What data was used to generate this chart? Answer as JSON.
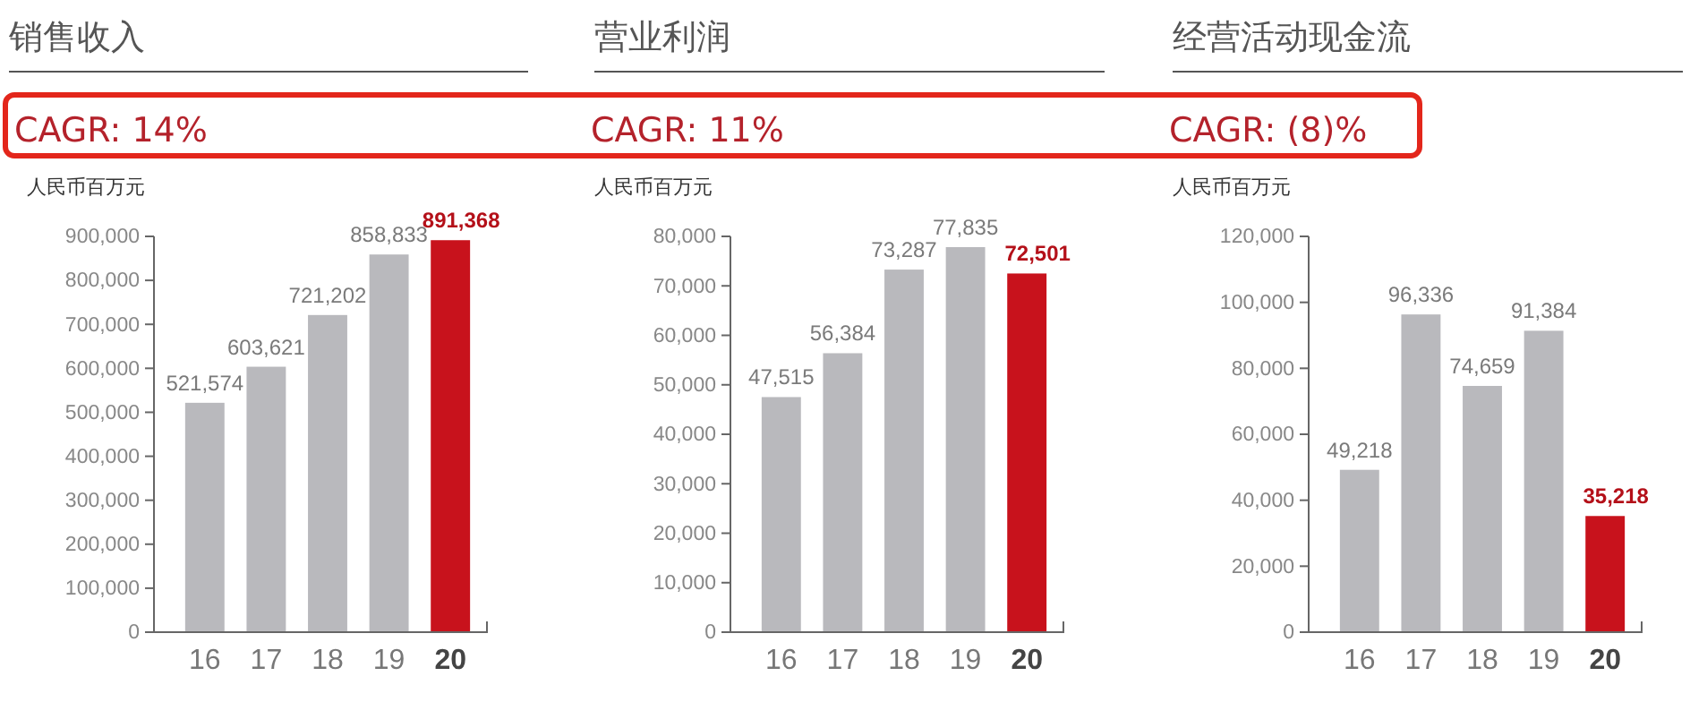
{
  "chart_data": [
    {
      "type": "bar",
      "title": "销售收入",
      "ylabel": "人民币百万元",
      "annotations": [
        "CAGR: 14%"
      ],
      "categories": [
        "16",
        "17",
        "18",
        "19",
        "20"
      ],
      "values": [
        521574,
        603621,
        721202,
        858833,
        891368
      ],
      "colors": [
        "#b9b9bd",
        "#b9b9bd",
        "#b9b9bd",
        "#b9b9bd",
        "#c8121c"
      ],
      "ylim": [
        0,
        900000
      ],
      "yticks": [
        {
          "value": 0,
          "label": "0"
        },
        {
          "value": 100000,
          "label": "100,000"
        },
        {
          "value": 200000,
          "label": "200,000"
        },
        {
          "value": 300000,
          "label": "300,000"
        },
        {
          "value": 400000,
          "label": "400,000"
        },
        {
          "value": 500000,
          "label": "500,000"
        },
        {
          "value": 600000,
          "label": "600,000"
        },
        {
          "value": 700000,
          "label": "700,000"
        },
        {
          "value": 800000,
          "label": "800,000"
        },
        {
          "value": 900000,
          "label": "900,000"
        }
      ],
      "value_labels": [
        "521,574",
        "603,621",
        "721,202",
        "858,833",
        "891,368"
      ],
      "grid": false
    },
    {
      "type": "bar",
      "title": "营业利润",
      "ylabel": "人民币百万元",
      "annotations": [
        "CAGR: 11%"
      ],
      "categories": [
        "16",
        "17",
        "18",
        "19",
        "20"
      ],
      "values": [
        47515,
        56384,
        73287,
        77835,
        72501
      ],
      "colors": [
        "#b9b9bd",
        "#b9b9bd",
        "#b9b9bd",
        "#b9b9bd",
        "#c8121c"
      ],
      "ylim": [
        0,
        80000
      ],
      "yticks": [
        {
          "value": 0,
          "label": "0"
        },
        {
          "value": 10000,
          "label": "10,000"
        },
        {
          "value": 20000,
          "label": "20,000"
        },
        {
          "value": 30000,
          "label": "30,000"
        },
        {
          "value": 40000,
          "label": "40,000"
        },
        {
          "value": 50000,
          "label": "50,000"
        },
        {
          "value": 60000,
          "label": "60,000"
        },
        {
          "value": 70000,
          "label": "70,000"
        },
        {
          "value": 80000,
          "label": "80,000"
        }
      ],
      "value_labels": [
        "47,515",
        "56,384",
        "73,287",
        "77,835",
        "72,501"
      ],
      "grid": false
    },
    {
      "type": "bar",
      "title": "经营活动现金流",
      "ylabel": "人民币百万元",
      "annotations": [
        "CAGR: (8)%"
      ],
      "categories": [
        "16",
        "17",
        "18",
        "19",
        "20"
      ],
      "values": [
        49218,
        96336,
        74659,
        91384,
        35218
      ],
      "colors": [
        "#b9b9bd",
        "#b9b9bd",
        "#b9b9bd",
        "#b9b9bd",
        "#c8121c"
      ],
      "ylim": [
        0,
        120000
      ],
      "yticks": [
        {
          "value": 0,
          "label": "0"
        },
        {
          "value": 20000,
          "label": "20,000"
        },
        {
          "value": 40000,
          "label": "40,000"
        },
        {
          "value": 60000,
          "label": "60,000"
        },
        {
          "value": 80000,
          "label": "80,000"
        },
        {
          "value": 100000,
          "label": "100,000"
        },
        {
          "value": 120000,
          "label": "120,000"
        }
      ],
      "value_labels": [
        "49,218",
        "96,336",
        "74,659",
        "91,384",
        "35,218"
      ],
      "grid": false
    }
  ]
}
